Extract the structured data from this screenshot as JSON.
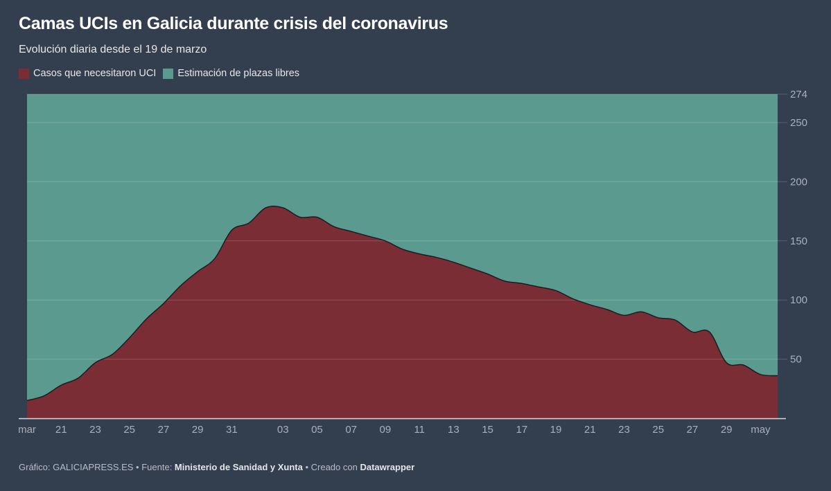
{
  "chart_data": {
    "type": "area",
    "stacked": true,
    "title": "Camas UCIs en Galicia durante crisis del coronavirus",
    "subtitle": "Evolución diaria desde el 19 de marzo",
    "x": [
      "2020-03-19",
      "2020-03-20",
      "2020-03-21",
      "2020-03-22",
      "2020-03-23",
      "2020-03-24",
      "2020-03-25",
      "2020-03-26",
      "2020-03-27",
      "2020-03-28",
      "2020-03-29",
      "2020-03-30",
      "2020-03-31",
      "2020-04-01",
      "2020-04-02",
      "2020-04-03",
      "2020-04-04",
      "2020-04-05",
      "2020-04-06",
      "2020-04-07",
      "2020-04-08",
      "2020-04-09",
      "2020-04-10",
      "2020-04-11",
      "2020-04-12",
      "2020-04-13",
      "2020-04-14",
      "2020-04-15",
      "2020-04-16",
      "2020-04-17",
      "2020-04-18",
      "2020-04-19",
      "2020-04-20",
      "2020-04-21",
      "2020-04-22",
      "2020-04-23",
      "2020-04-24",
      "2020-04-25",
      "2020-04-26",
      "2020-04-27",
      "2020-04-28",
      "2020-04-29",
      "2020-04-30",
      "2020-05-01",
      "2020-05-02"
    ],
    "series": [
      {
        "name": "Casos que necesitaron UCI",
        "color": "#7b2d35",
        "values": [
          15,
          19,
          28,
          34,
          47,
          54,
          68,
          84,
          97,
          112,
          124,
          135,
          159,
          165,
          178,
          178,
          170,
          170,
          162,
          158,
          154,
          150,
          143,
          139,
          136,
          132,
          127,
          122,
          116,
          114,
          111,
          108,
          101,
          96,
          92,
          87,
          90,
          85,
          83,
          73,
          73,
          47,
          45,
          37,
          36
        ]
      },
      {
        "name": "Estimación de plazas libres",
        "color": "#5b9b8f",
        "stack_total": 274
      }
    ],
    "x_tick_labels": [
      {
        "date": "2020-03-19",
        "label": "mar"
      },
      {
        "date": "2020-03-21",
        "label": "21"
      },
      {
        "date": "2020-03-23",
        "label": "23"
      },
      {
        "date": "2020-03-25",
        "label": "25"
      },
      {
        "date": "2020-03-27",
        "label": "27"
      },
      {
        "date": "2020-03-29",
        "label": "29"
      },
      {
        "date": "2020-03-31",
        "label": "31"
      },
      {
        "date": "2020-04-03",
        "label": "03"
      },
      {
        "date": "2020-04-05",
        "label": "05"
      },
      {
        "date": "2020-04-07",
        "label": "07"
      },
      {
        "date": "2020-04-09",
        "label": "09"
      },
      {
        "date": "2020-04-11",
        "label": "11"
      },
      {
        "date": "2020-04-13",
        "label": "13"
      },
      {
        "date": "2020-04-15",
        "label": "15"
      },
      {
        "date": "2020-04-17",
        "label": "17"
      },
      {
        "date": "2020-04-19",
        "label": "19"
      },
      {
        "date": "2020-04-21",
        "label": "21"
      },
      {
        "date": "2020-04-23",
        "label": "23"
      },
      {
        "date": "2020-04-25",
        "label": "25"
      },
      {
        "date": "2020-04-27",
        "label": "27"
      },
      {
        "date": "2020-04-29",
        "label": "29"
      },
      {
        "date": "2020-05-01",
        "label": "may"
      }
    ],
    "y_ticks": [
      50,
      100,
      150,
      200,
      250,
      274
    ],
    "ylim": [
      0,
      274
    ],
    "y_axis_position": "right",
    "grid": true,
    "legend_placement": "top-left",
    "background": "#333e4f"
  },
  "footer": {
    "chart_prefix": "Gráfico: GALICIAPRESS.ES • Fuente: ",
    "source": "Ministerio de Sanidad y Xunta",
    "created_prefix": " • Creado con ",
    "tool": "Datawrapper"
  }
}
